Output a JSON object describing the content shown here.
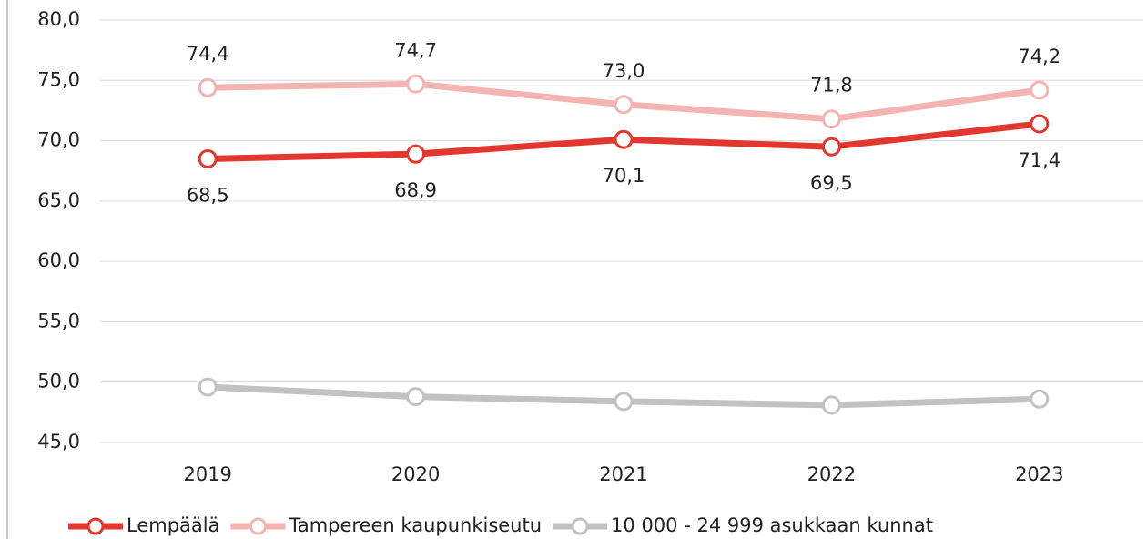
{
  "chart_data": {
    "type": "line",
    "categories": [
      "2019",
      "2020",
      "2021",
      "2022",
      "2023"
    ],
    "series": [
      {
        "name": "Lempäälä",
        "color": "#e2372f",
        "values": [
          68.5,
          68.9,
          70.1,
          69.5,
          71.4
        ],
        "value_labels": [
          "68,5",
          "68,9",
          "70,1",
          "69,5",
          "71,4"
        ]
      },
      {
        "name": "Tampereen kaupunkiseutu",
        "color": "#f4b5b2",
        "values": [
          74.4,
          74.7,
          73.0,
          71.8,
          74.2
        ],
        "value_labels": [
          "74,4",
          "74,7",
          "73,0",
          "71,8",
          "74,2"
        ]
      },
      {
        "name": "10 000 - 24 999 asukkaan kunnat",
        "color": "#c2c2c2",
        "values": [
          49.6,
          48.8,
          48.4,
          48.1,
          48.6
        ]
      }
    ],
    "ylim": [
      45,
      80
    ],
    "yticks": [
      {
        "value": 45,
        "label": "45,0"
      },
      {
        "value": 50,
        "label": "50,0"
      },
      {
        "value": 55,
        "label": "55,0"
      },
      {
        "value": 60,
        "label": "60,0"
      },
      {
        "value": 65,
        "label": "65,0"
      },
      {
        "value": 70,
        "label": "70,0"
      },
      {
        "value": 75,
        "label": "75,0"
      },
      {
        "value": 80,
        "label": "80,0"
      }
    ],
    "grid": true,
    "legend": "bottom"
  }
}
